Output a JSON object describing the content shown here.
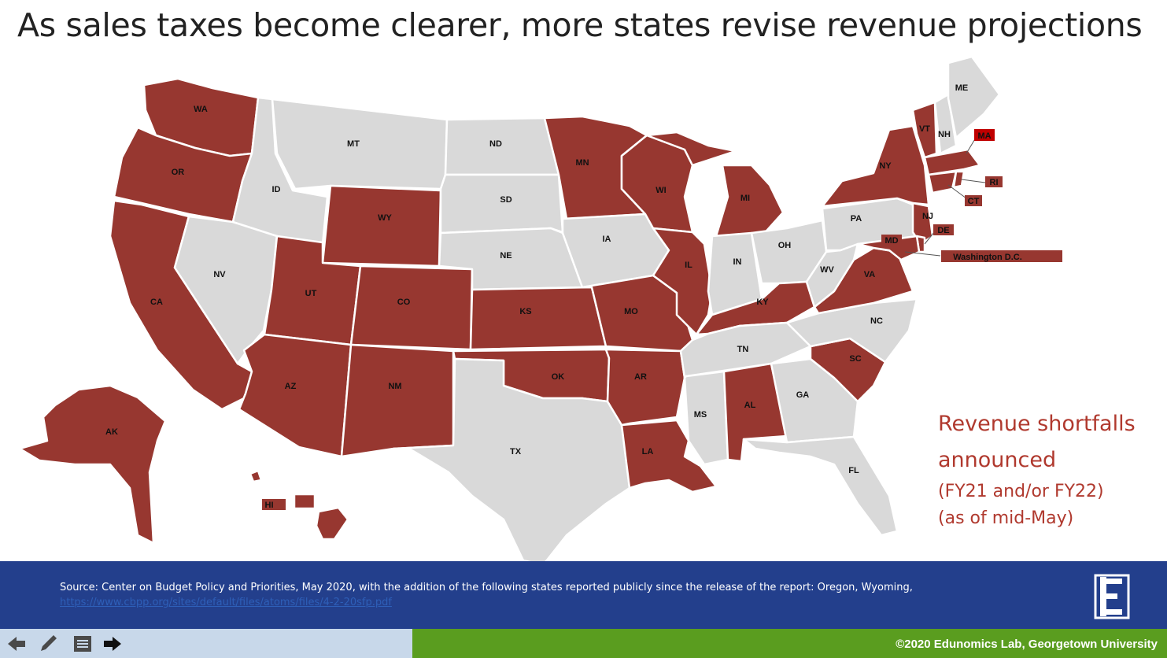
{
  "title": "As sales taxes become clearer, more states revise revenue projections",
  "legend": {
    "line1": "Revenue shortfalls",
    "line2": "announced",
    "line3": "(FY21 and/or FY22)",
    "line4": "(as of mid-May)"
  },
  "colors": {
    "shortfall": "#973730",
    "no_shortfall": "#d9d9d9",
    "highlight": "#c00000",
    "footer": "#233f8c",
    "brand_green": "#5a9d1f"
  },
  "states": {
    "WA": "WA",
    "OR": "OR",
    "CA": "CA",
    "NV": "NV",
    "ID": "ID",
    "MT": "MT",
    "WY": "WY",
    "UT": "UT",
    "AZ": "AZ",
    "CO": "CO",
    "NM": "NM",
    "ND": "ND",
    "SD": "SD",
    "NE": "NE",
    "KS": "KS",
    "OK": "OK",
    "TX": "TX",
    "MN": "MN",
    "IA": "IA",
    "MO": "MO",
    "AR": "AR",
    "LA": "LA",
    "WI": "WI",
    "IL": "IL",
    "MI": "MI",
    "IN": "IN",
    "OH": "OH",
    "KY": "KY",
    "TN": "TN",
    "MS": "MS",
    "AL": "AL",
    "GA": "GA",
    "FL": "FL",
    "SC": "SC",
    "NC": "NC",
    "VA": "VA",
    "WV": "WV",
    "PA": "PA",
    "NY": "NY",
    "VT": "VT",
    "NH": "NH",
    "ME": "ME",
    "MA": "MA",
    "RI": "RI",
    "CT": "CT",
    "NJ": "NJ",
    "DE": "DE",
    "MD": "MD",
    "DC": "Washington D.C.",
    "AK": "AK",
    "HI": "HI"
  },
  "shortfall_states": [
    "WA",
    "OR",
    "CA",
    "UT",
    "AZ",
    "CO",
    "NM",
    "WY",
    "KS",
    "OK",
    "MN",
    "MO",
    "AR",
    "LA",
    "WI",
    "IL",
    "MI",
    "KY",
    "AL",
    "SC",
    "VA",
    "NY",
    "VT",
    "MA",
    "RI",
    "CT",
    "NJ",
    "DE",
    "MD",
    "DC",
    "AK",
    "HI"
  ],
  "footer": {
    "source_text": "Source: Center on Budget Policy and Priorities, May 2020, with the addition of the following states reported publicly since the release of the report: Oregon, Wyoming,",
    "source_link": "https://www.cbpp.org/sites/default/files/atoms/files/4-2-20sfp.pdf",
    "copyright": "©2020 Edunomics Lab, Georgetown University"
  },
  "controls": [
    "back-icon",
    "pen-icon",
    "notes-icon",
    "next-icon"
  ]
}
